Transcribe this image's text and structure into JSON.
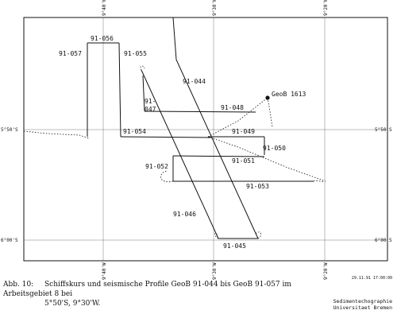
{
  "map": {
    "axes": {
      "lon_ticks": [
        "9°40'W",
        "9°30'W",
        "9°20'W"
      ],
      "lat_ticks": [
        "5°50'S",
        "6°00'S"
      ]
    },
    "profiles": [
      "91-044",
      "91-045",
      "91-046",
      "91-047",
      "91-048",
      "91-049",
      "91-050",
      "91-051",
      "91-052",
      "91-053",
      "91-054",
      "91-055",
      "91-056",
      "91-057"
    ],
    "station": "GeoB 1613",
    "colors": {
      "ink": "#111111",
      "background": "#ffffff"
    }
  },
  "caption": {
    "figure_label": "Abb. 10:",
    "line1": "Schiffskurs und seismische Profile GeoB 91-044 bis GeoB 91-057 im Arbeitsgebiet 8 bei",
    "line2": "5°50'S, 9°30'W."
  },
  "credit": {
    "line1": "Sedimentechographie",
    "line2": "Universitaet Bremen"
  },
  "timestamp": "29.11.91 17:00:00"
}
